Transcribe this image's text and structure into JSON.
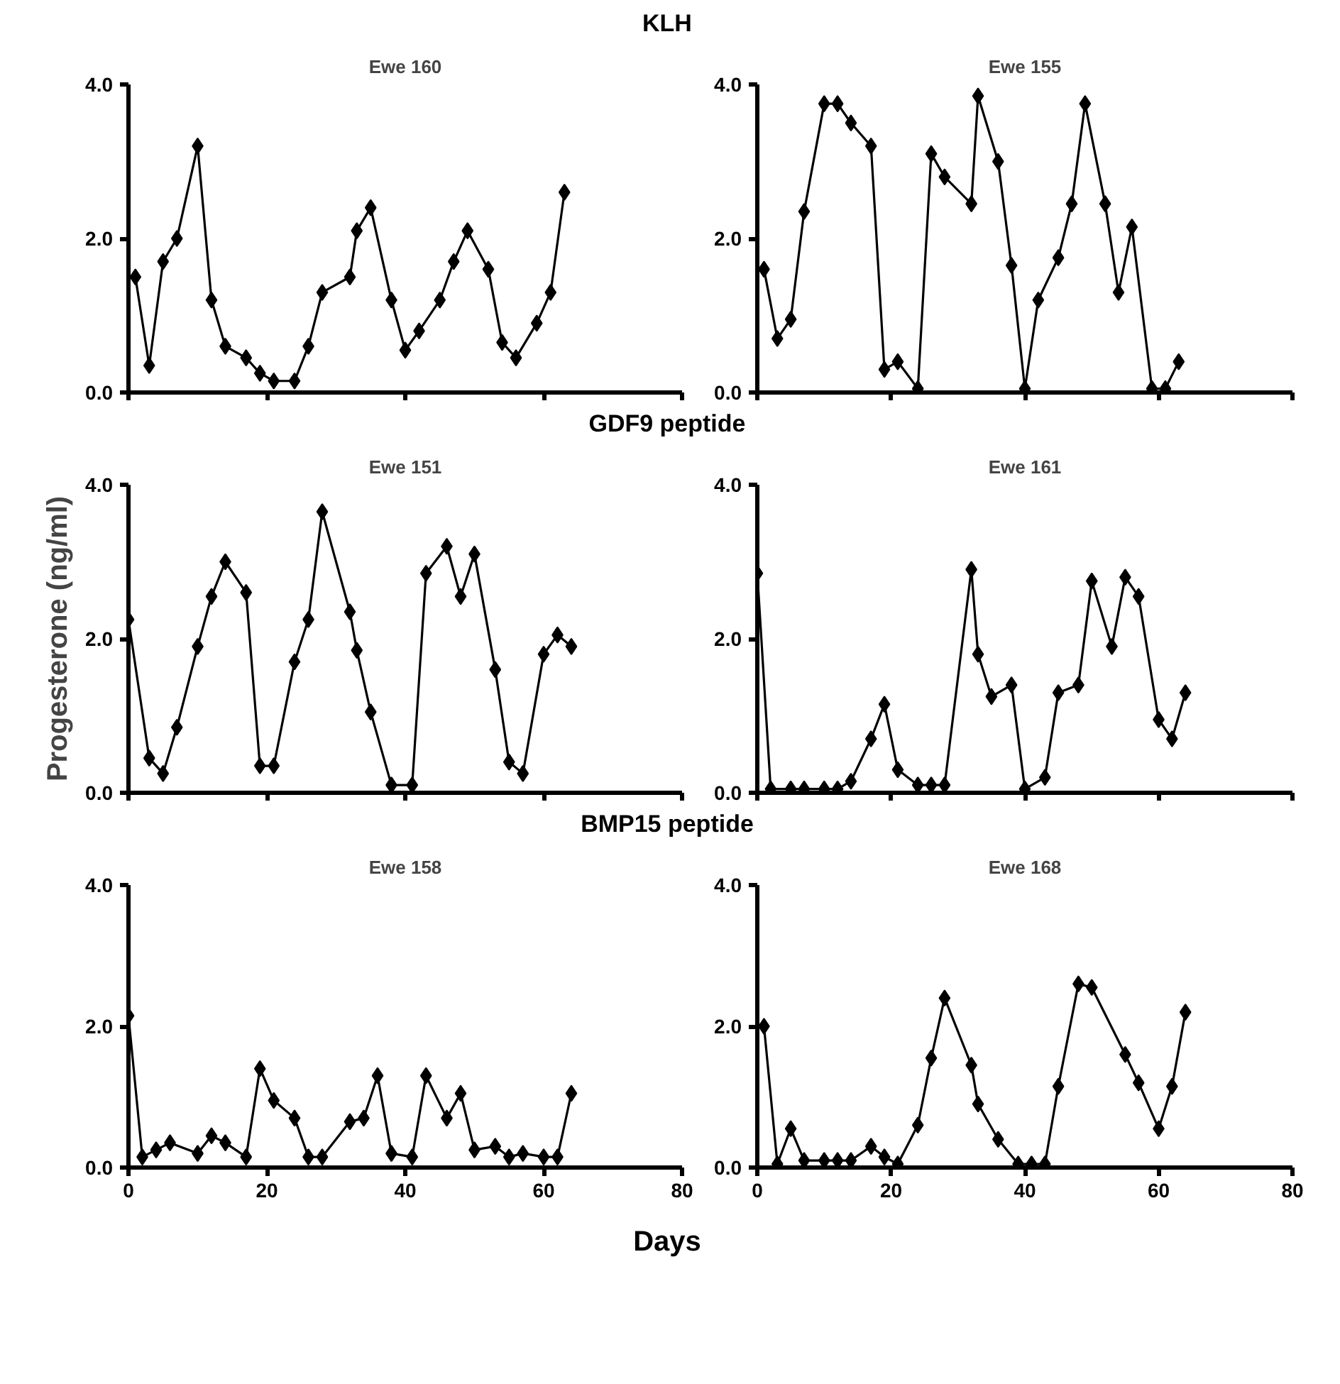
{
  "chart_data": [
    {
      "type": "line",
      "annotations": [
        "KLH"
      ],
      "title": "Ewe 160",
      "color": "#000000",
      "marker": "diamond",
      "tick_labels": "y",
      "xlim": [
        0,
        80
      ],
      "ylim": [
        0,
        4
      ],
      "xticks": [
        0,
        20,
        40,
        60,
        80
      ],
      "yticks": [
        {
          "value": 0,
          "label": "0.0"
        },
        {
          "value": 2,
          "label": "2.0"
        },
        {
          "value": 4,
          "label": "4.0"
        }
      ],
      "x": [
        1,
        3,
        5,
        7,
        10,
        12,
        14,
        17,
        19,
        21,
        24,
        26,
        28,
        32,
        33,
        35,
        38,
        40,
        42,
        45,
        47,
        49,
        52,
        54,
        56,
        59,
        61,
        63
      ],
      "values": [
        1.5,
        0.35,
        1.7,
        2.0,
        3.2,
        1.2,
        0.6,
        0.45,
        0.25,
        0.15,
        0.15,
        0.6,
        1.3,
        1.5,
        2.1,
        2.4,
        1.2,
        0.55,
        0.8,
        1.2,
        1.7,
        2.1,
        1.6,
        0.65,
        0.45,
        0.9,
        1.3,
        2.6
      ]
    },
    {
      "type": "line",
      "title": "Ewe 155",
      "color": "#000000",
      "marker": "diamond",
      "tick_labels": "y",
      "xlim": [
        0,
        80
      ],
      "ylim": [
        0,
        4
      ],
      "xticks": [
        0,
        20,
        40,
        60,
        80
      ],
      "yticks": [
        {
          "value": 0,
          "label": "0.0"
        },
        {
          "value": 2,
          "label": "2.0"
        },
        {
          "value": 4,
          "label": "4.0"
        }
      ],
      "x": [
        1,
        3,
        5,
        7,
        10,
        12,
        14,
        17,
        19,
        21,
        24,
        26,
        28,
        32,
        33,
        36,
        38,
        40,
        42,
        45,
        47,
        49,
        52,
        54,
        56,
        59,
        61,
        63
      ],
      "values": [
        1.6,
        0.7,
        0.95,
        2.35,
        3.75,
        3.75,
        3.5,
        3.2,
        0.3,
        0.4,
        0.05,
        3.1,
        2.8,
        2.45,
        3.85,
        3.0,
        1.65,
        0.05,
        1.2,
        1.75,
        2.45,
        3.75,
        2.45,
        1.3,
        2.15,
        0.05,
        0.05,
        0.4
      ]
    },
    {
      "type": "line",
      "annotations": [
        "GDF9 peptide"
      ],
      "title": "Ewe 151",
      "ylabel": "Progesterone (ng/ml)",
      "color": "#000000",
      "marker": "diamond",
      "tick_labels": "y",
      "xlim": [
        0,
        80
      ],
      "ylim": [
        0,
        4
      ],
      "xticks": [
        0,
        20,
        40,
        60,
        80
      ],
      "yticks": [
        {
          "value": 0,
          "label": "0.0"
        },
        {
          "value": 2,
          "label": "2.0"
        },
        {
          "value": 4,
          "label": "4.0"
        }
      ],
      "x": [
        0,
        3,
        5,
        7,
        10,
        12,
        14,
        17,
        19,
        21,
        24,
        26,
        28,
        32,
        33,
        35,
        38,
        41,
        43,
        46,
        48,
        50,
        53,
        55,
        57,
        60,
        62,
        64
      ],
      "values": [
        2.25,
        0.45,
        0.25,
        0.85,
        1.9,
        2.55,
        3.0,
        2.6,
        0.35,
        0.35,
        1.7,
        2.25,
        3.65,
        2.35,
        1.85,
        1.05,
        0.1,
        0.1,
        2.85,
        3.2,
        2.55,
        3.1,
        1.6,
        0.4,
        0.25,
        1.8,
        2.05,
        1.9
      ]
    },
    {
      "type": "line",
      "title": "Ewe 161",
      "color": "#000000",
      "marker": "diamond",
      "tick_labels": "y",
      "xlim": [
        0,
        80
      ],
      "ylim": [
        0,
        4
      ],
      "xticks": [
        0,
        20,
        40,
        60,
        80
      ],
      "yticks": [
        {
          "value": 0,
          "label": "0.0"
        },
        {
          "value": 2,
          "label": "2.0"
        },
        {
          "value": 4,
          "label": "4.0"
        }
      ],
      "x": [
        0,
        2,
        5,
        7,
        10,
        12,
        14,
        17,
        19,
        21,
        24,
        26,
        28,
        32,
        33,
        35,
        38,
        40,
        43,
        45,
        48,
        50,
        53,
        55,
        57,
        60,
        62,
        64
      ],
      "values": [
        2.85,
        0.05,
        0.05,
        0.05,
        0.05,
        0.05,
        0.15,
        0.7,
        1.15,
        0.3,
        0.1,
        0.1,
        0.1,
        2.9,
        1.8,
        1.25,
        1.4,
        0.05,
        0.2,
        1.3,
        1.4,
        2.75,
        1.9,
        2.8,
        2.55,
        0.95,
        0.7,
        1.3
      ]
    },
    {
      "type": "line",
      "annotations": [
        "BMP15 peptide"
      ],
      "title": "Ewe 158",
      "xlabel": "Days",
      "color": "#000000",
      "marker": "diamond",
      "xlim": [
        0,
        80
      ],
      "ylim": [
        0,
        4
      ],
      "xticks": [
        0,
        20,
        40,
        60,
        80
      ],
      "yticks": [
        {
          "value": 0,
          "label": "0.0"
        },
        {
          "value": 2,
          "label": "2.0"
        },
        {
          "value": 4,
          "label": "4.0"
        }
      ],
      "x": [
        0,
        2,
        4,
        6,
        10,
        12,
        14,
        17,
        19,
        21,
        24,
        26,
        28,
        32,
        34,
        36,
        38,
        41,
        43,
        46,
        48,
        50,
        53,
        55,
        57,
        60,
        62,
        64
      ],
      "values": [
        2.15,
        0.15,
        0.25,
        0.35,
        0.2,
        0.45,
        0.35,
        0.15,
        1.4,
        0.95,
        0.7,
        0.15,
        0.15,
        0.65,
        0.7,
        1.3,
        0.2,
        0.15,
        1.3,
        0.7,
        1.05,
        0.25,
        0.3,
        0.15,
        0.2,
        0.15,
        0.15,
        1.05
      ]
    },
    {
      "type": "line",
      "title": "Ewe 168",
      "color": "#000000",
      "marker": "diamond",
      "xlim": [
        0,
        80
      ],
      "ylim": [
        0,
        4
      ],
      "xticks": [
        0,
        20,
        40,
        60,
        80
      ],
      "yticks": [
        {
          "value": 0,
          "label": "0.0"
        },
        {
          "value": 2,
          "label": "2.0"
        },
        {
          "value": 4,
          "label": "4.0"
        }
      ],
      "x": [
        1,
        3,
        5,
        7,
        10,
        12,
        14,
        17,
        19,
        21,
        24,
        26,
        28,
        32,
        33,
        36,
        39,
        41,
        43,
        45,
        48,
        50,
        55,
        57,
        60,
        62,
        64
      ],
      "values": [
        2.0,
        0.05,
        0.55,
        0.1,
        0.1,
        0.1,
        0.1,
        0.3,
        0.15,
        0.05,
        0.6,
        1.55,
        2.4,
        1.45,
        0.9,
        0.4,
        0.05,
        0.05,
        0.05,
        1.15,
        2.6,
        2.55,
        1.6,
        1.2,
        0.55,
        1.15,
        2.2
      ]
    }
  ]
}
